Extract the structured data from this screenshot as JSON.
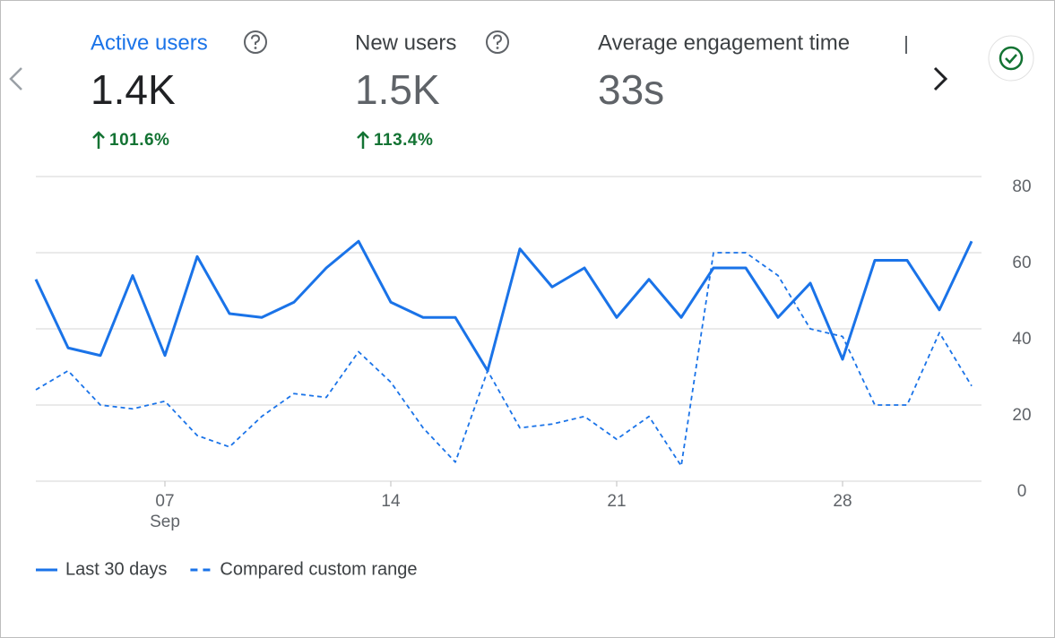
{
  "metrics": [
    {
      "label": "Active users",
      "value": "1.4K",
      "change": "101.6%"
    },
    {
      "label": "New users",
      "value": "1.5K",
      "change": "113.4%"
    },
    {
      "label": "Average engagement time",
      "value": "33s"
    }
  ],
  "chart_data": {
    "type": "line",
    "categories": [
      null,
      null,
      null,
      null,
      "07",
      null,
      null,
      null,
      null,
      null,
      null,
      "14",
      null,
      null,
      null,
      null,
      null,
      null,
      "21",
      null,
      null,
      null,
      null,
      null,
      null,
      "28",
      null,
      null,
      null,
      null
    ],
    "month_label": "Sep",
    "series": [
      {
        "name": "Last 30 days",
        "color": "#1a73e8",
        "dash": false,
        "values": [
          53,
          35,
          33,
          54,
          33,
          59,
          44,
          43,
          47,
          56,
          63,
          47,
          43,
          43,
          29,
          61,
          51,
          56,
          43,
          53,
          43,
          56,
          56,
          43,
          52,
          32,
          58,
          58,
          45,
          63
        ]
      },
      {
        "name": "Compared custom range",
        "color": "#1a73e8",
        "dash": true,
        "values": [
          24,
          29,
          20,
          19,
          21,
          12,
          9,
          17,
          23,
          22,
          34,
          26,
          14,
          5,
          29,
          14,
          15,
          17,
          11,
          17,
          4,
          60,
          60,
          54,
          40,
          38,
          20,
          20,
          39,
          25
        ]
      }
    ],
    "ylim": [
      0,
      80
    ],
    "yticks": [
      0,
      20,
      40,
      60,
      80
    ],
    "y_axis_side": "right",
    "grid": true
  }
}
